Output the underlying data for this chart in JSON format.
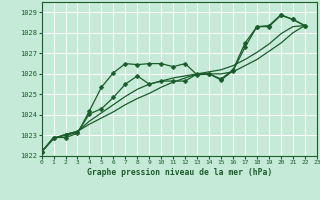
{
  "title": "Graphe pression niveau de la mer (hPa)",
  "bg_color": "#c6ead8",
  "grid_color": "#ffffff",
  "line_color": "#1a5c2a",
  "ylim": [
    1022.0,
    1029.5
  ],
  "xlim": [
    0,
    23
  ],
  "yticks": [
    1022,
    1023,
    1024,
    1025,
    1026,
    1027,
    1028,
    1029
  ],
  "xticks": [
    0,
    1,
    2,
    3,
    4,
    5,
    6,
    7,
    8,
    9,
    10,
    11,
    12,
    13,
    14,
    15,
    16,
    17,
    18,
    19,
    20,
    21,
    22,
    23
  ],
  "series_with_markers": [
    {
      "x": [
        0,
        1,
        2,
        3,
        4,
        5,
        6,
        7,
        8,
        9,
        10,
        11,
        12,
        13,
        14,
        15,
        16,
        17,
        18,
        19,
        20,
        21,
        22
      ],
      "y": [
        1022.2,
        1022.9,
        1022.9,
        1023.1,
        1024.2,
        1025.35,
        1026.05,
        1026.5,
        1026.45,
        1026.5,
        1026.5,
        1026.35,
        1026.5,
        1025.95,
        1026.0,
        1025.7,
        1026.15,
        1027.3,
        1028.3,
        1028.35,
        1028.88,
        1028.65,
        1028.35
      ]
    },
    {
      "x": [
        0,
        1,
        2,
        3,
        4,
        5,
        6,
        7,
        8,
        9,
        10,
        11,
        12,
        13,
        14,
        15,
        16,
        17,
        18,
        19,
        20,
        21,
        22
      ],
      "y": [
        1022.2,
        1022.9,
        1023.0,
        1023.15,
        1024.05,
        1024.3,
        1024.85,
        1025.5,
        1025.9,
        1025.5,
        1025.65,
        1025.65,
        1025.65,
        1026.0,
        1026.0,
        1025.75,
        1026.2,
        1027.5,
        1028.3,
        1028.3,
        1028.85,
        1028.65,
        1028.35
      ]
    }
  ],
  "series_lines": [
    {
      "x": [
        0,
        1,
        2,
        3,
        4,
        5,
        6,
        7,
        8,
        9,
        10,
        11,
        12,
        13,
        14,
        15,
        16,
        17,
        18,
        19,
        20,
        21,
        22
      ],
      "y": [
        1022.2,
        1022.85,
        1023.05,
        1023.2,
        1023.55,
        1023.85,
        1024.15,
        1024.5,
        1024.8,
        1025.05,
        1025.35,
        1025.6,
        1025.8,
        1026.0,
        1026.1,
        1026.2,
        1026.4,
        1026.7,
        1027.05,
        1027.45,
        1027.95,
        1028.3,
        1028.35
      ]
    },
    {
      "x": [
        0,
        1,
        2,
        3,
        4,
        5,
        6,
        7,
        8,
        9,
        10,
        11,
        12,
        13,
        14,
        15,
        16,
        17,
        18,
        19,
        20,
        21,
        22
      ],
      "y": [
        1022.2,
        1022.85,
        1023.05,
        1023.2,
        1023.7,
        1024.1,
        1024.5,
        1024.9,
        1025.25,
        1025.5,
        1025.65,
        1025.8,
        1025.9,
        1026.0,
        1026.0,
        1026.0,
        1026.1,
        1026.4,
        1026.7,
        1027.1,
        1027.5,
        1028.0,
        1028.35
      ]
    }
  ],
  "marker": "D",
  "markersize": 2.5,
  "linewidth": 0.9
}
